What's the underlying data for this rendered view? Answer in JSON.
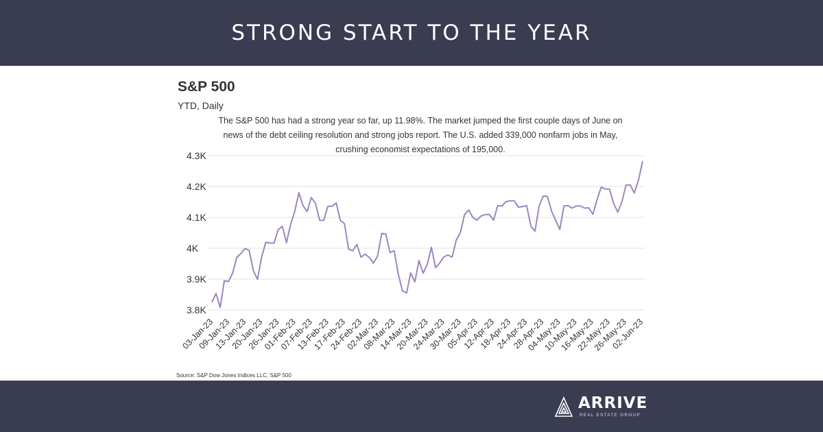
{
  "header": {
    "title": "STRONG START TO THE YEAR"
  },
  "brand": {
    "name": "ARRIVE",
    "tagline": "REAL ESTATE GROUP"
  },
  "colors": {
    "band": "#3a3c52",
    "line": "#9b86bd",
    "grid": "#e2e2e2"
  },
  "source": "Source: S&P Dow Jones Indices LLC, S&P 500",
  "chart_data": {
    "type": "line",
    "title": "S&P 500",
    "subtitle": "YTD, Daily",
    "annotation": "The S&P 500 has had a strong year so far, up 11.98%. The market jumped the first couple days of June on news of the debt ceiling resolution and strong jobs report. The U.S. added 339,000 nonfarm jobs in May, crushing economist expectations of 195,000.",
    "xlabel": "",
    "ylabel": "",
    "ylim": [
      3780,
      4300
    ],
    "yticks": [
      3800,
      3900,
      4000,
      4100,
      4200,
      4300
    ],
    "ytick_labels": [
      "3.8K",
      "3.9K",
      "4K",
      "4.1K",
      "4.2K",
      "4.3K"
    ],
    "grid": true,
    "legend": "none",
    "xtick_labels": [
      "03-Jan-23",
      "09-Jan-23",
      "13-Jan-23",
      "20-Jan-23",
      "26-Jan-23",
      "01-Feb-23",
      "07-Feb-23",
      "13-Feb-23",
      "17-Feb-23",
      "24-Feb-23",
      "02-Mar-23",
      "08-Mar-23",
      "14-Mar-23",
      "20-Mar-23",
      "24-Mar-23",
      "30-Mar-23",
      "05-Apr-23",
      "12-Apr-23",
      "18-Apr-23",
      "24-Apr-23",
      "28-Apr-23",
      "04-May-23",
      "10-May-23",
      "16-May-23",
      "22-May-23",
      "26-May-23",
      "02-Jun-23"
    ],
    "series": [
      {
        "values": [
          3825,
          3853,
          3808,
          3895,
          3892,
          3919,
          3970,
          3983,
          3999,
          3993,
          3928,
          3899,
          3972,
          4019,
          4017,
          4017,
          4060,
          4071,
          4018,
          4077,
          4120,
          4180,
          4138,
          4119,
          4164,
          4146,
          4091,
          4090,
          4136,
          4136,
          4147,
          4090,
          4080,
          3997,
          3992,
          4012,
          3971,
          3981,
          3970,
          3952,
          3974,
          4048,
          4046,
          3986,
          3992,
          3916,
          3862,
          3855,
          3920,
          3891,
          3960,
          3919,
          3948,
          4003,
          3937,
          3952,
          3972,
          3978,
          3971,
          4027,
          4051,
          4109,
          4124,
          4100,
          4091,
          4105,
          4109,
          4109,
          4091,
          4138,
          4137,
          4151,
          4154,
          4154,
          4133,
          4135,
          4138,
          4072,
          4055,
          4136,
          4169,
          4168,
          4120,
          4091,
          4061,
          4137,
          4138,
          4130,
          4137,
          4137,
          4130,
          4131,
          4110,
          4158,
          4198,
          4192,
          4192,
          4145,
          4117,
          4151,
          4205,
          4205,
          4179,
          4221,
          4282
        ]
      }
    ]
  }
}
